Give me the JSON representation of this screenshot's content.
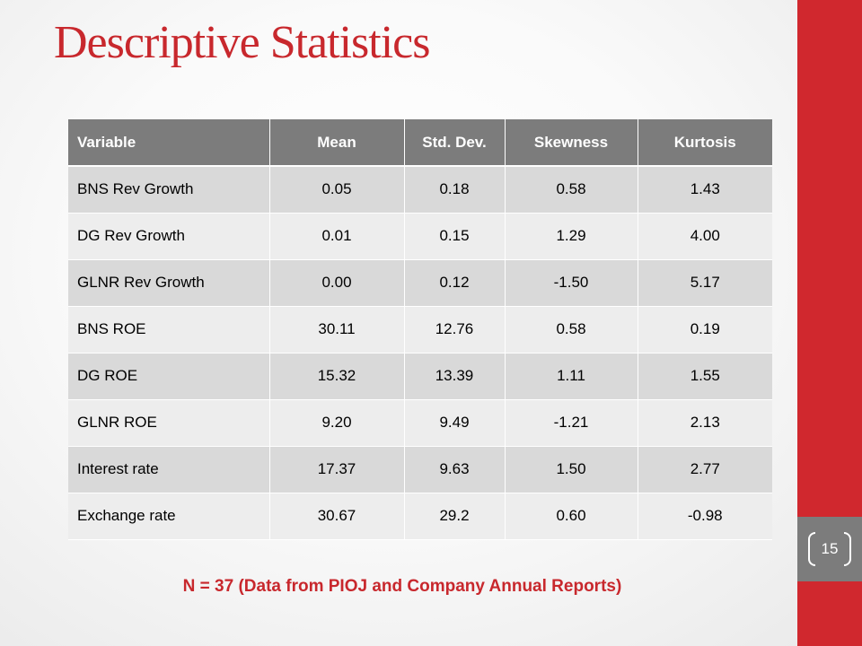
{
  "slide": {
    "title": "Descriptive Statistics",
    "page_number": "15",
    "footnote": "N = 37 (Data from PIOJ and Company Annual Reports)"
  },
  "table": {
    "headers": [
      "Variable",
      "Mean",
      "Std. Dev.",
      "Skewness",
      "Kurtosis"
    ],
    "rows": [
      [
        "BNS Rev Growth",
        "0.05",
        "0.18",
        "0.58",
        "1.43"
      ],
      [
        "DG Rev Growth",
        "0.01",
        "0.15",
        "1.29",
        "4.00"
      ],
      [
        "GLNR Rev Growth",
        "0.00",
        "0.12",
        "-1.50",
        "5.17"
      ],
      [
        "BNS ROE",
        "30.11",
        "12.76",
        "0.58",
        "0.19"
      ],
      [
        "DG ROE",
        "15.32",
        "13.39",
        "1.11",
        "1.55"
      ],
      [
        "GLNR ROE",
        "9.20",
        "9.49",
        "-1.21",
        "2.13"
      ],
      [
        "Interest rate",
        "17.37",
        "9.63",
        "1.50",
        "2.77"
      ],
      [
        "Exchange rate",
        "30.67",
        "29.2",
        "0.60",
        "-0.98"
      ]
    ]
  },
  "colors": {
    "accent_red": "#c8282d",
    "side_bar_red": "#d0282e",
    "header_gray": "#7c7c7c",
    "row_dark": "#d9d9d9",
    "row_light": "#ededed"
  }
}
